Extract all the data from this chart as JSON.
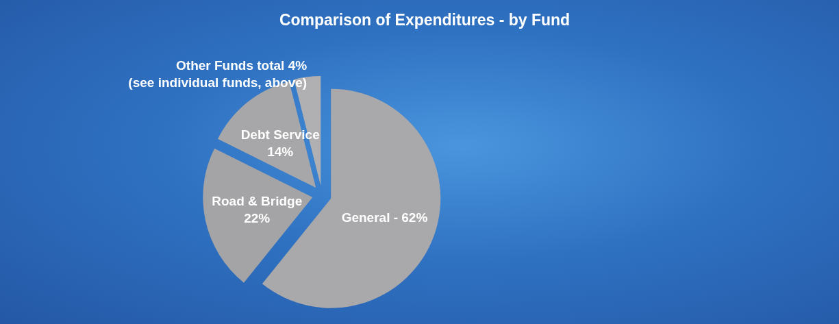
{
  "chart_data": {
    "type": "pie",
    "title": "Comparison of Expenditures - by Fund",
    "categories": [
      "General -",
      "Road & Bridge",
      "Debt Service",
      "Other Funds total"
    ],
    "values": [
      62,
      22,
      14,
      4
    ],
    "colors": [
      "#a9a9ab",
      "#a4a4a6",
      "#a7a7a9",
      "#b0b0b2"
    ],
    "value_labels": [
      "62%",
      "22%",
      "14%",
      "4%"
    ],
    "annotations": [
      "(see individual funds, above)"
    ]
  }
}
